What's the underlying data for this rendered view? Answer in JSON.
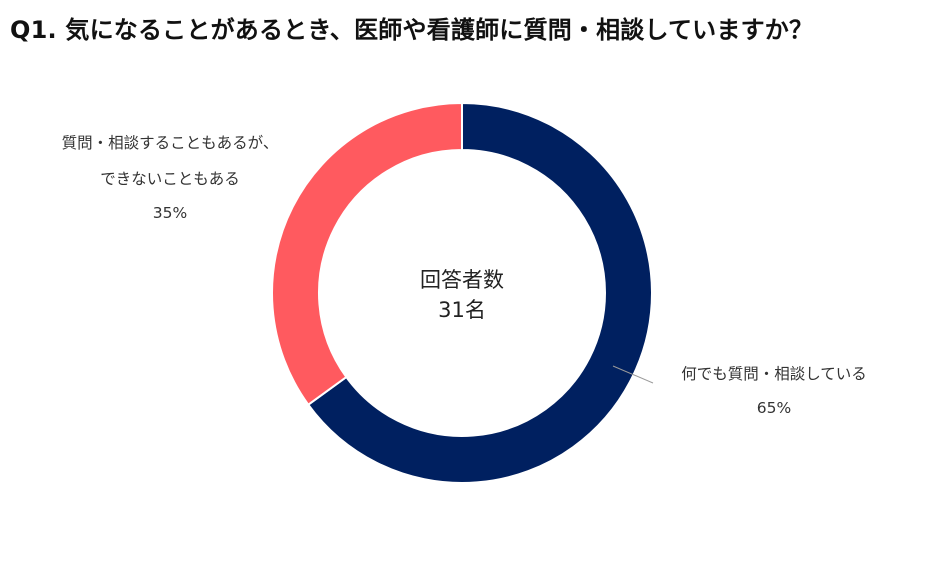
{
  "title": "Q1. 気になることがあるとき、医師や看護師に質問・相談していますか？",
  "center": {
    "label": "回答者数",
    "count": "31名"
  },
  "chart_data": {
    "type": "pie",
    "title": "Q1. 気になることがあるとき、医師や看護師に質問・相談していますか？",
    "total_label": "回答者数 31名",
    "slices": [
      {
        "label": "何でも質問・相談している",
        "value": 65,
        "display": "65%",
        "color": "#002060"
      },
      {
        "label": "質問・相談することもあるが、できないこともある",
        "value": 35,
        "display": "35%",
        "color": "#FF5A5F"
      }
    ]
  },
  "labels": {
    "slice0_line1": "何でも質問・相談している",
    "slice0_pct": "65%",
    "slice1_line1": "質問・相談することもあるが、",
    "slice1_line2": "できないこともある",
    "slice1_pct": "35%"
  }
}
